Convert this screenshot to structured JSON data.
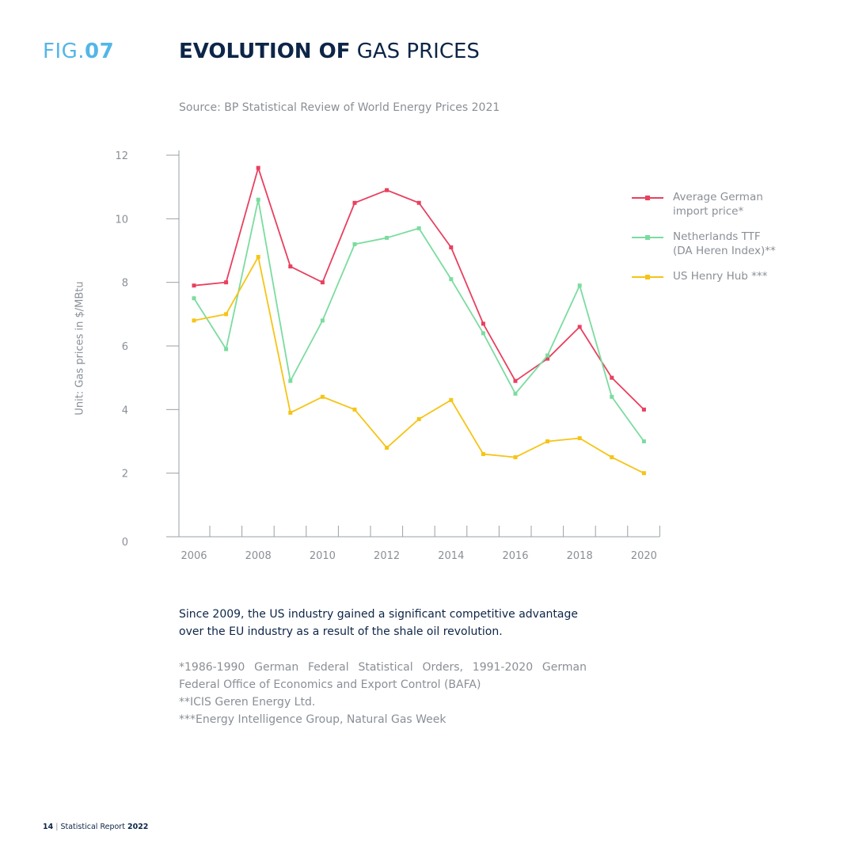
{
  "header": {
    "fig_prefix": "FIG.",
    "fig_number": "07",
    "title_bold": "EVOLUTION OF",
    "title_light": " GAS PRICES",
    "source": "Source: BP Statistical Review of World Energy Prices 2021"
  },
  "chart_data": {
    "type": "line",
    "ylabel": "Unit: Gas prices in $/MBtu",
    "xlabel": "",
    "ylim": [
      0,
      12
    ],
    "y_ticks": [
      "0",
      "2",
      "4",
      "6",
      "8",
      "10",
      "12"
    ],
    "x_tick_labels": [
      "2006",
      "2008",
      "2010",
      "2012",
      "2014",
      "2016",
      "2018",
      "2020"
    ],
    "x": [
      2006,
      2007,
      2008,
      2009,
      2010,
      2011,
      2012,
      2013,
      2014,
      2015,
      2016,
      2017,
      2018,
      2019,
      2020
    ],
    "grid": false,
    "legend_position": "right",
    "series": [
      {
        "name": "Average German\nimport price*",
        "color": "#e8405f",
        "values": [
          7.9,
          8.0,
          11.6,
          8.5,
          8.0,
          10.5,
          10.9,
          10.5,
          9.1,
          6.7,
          4.9,
          5.6,
          6.6,
          5.0,
          4.0
        ]
      },
      {
        "name": "Netherlands TTF\n(DA Heren Index)**",
        "color": "#7bdc9f",
        "values": [
          7.5,
          5.9,
          10.6,
          4.9,
          6.8,
          9.2,
          9.4,
          9.7,
          8.1,
          6.4,
          4.5,
          5.7,
          7.9,
          4.4,
          3.0
        ]
      },
      {
        "name": "US Henry Hub ***",
        "color": "#f6c415",
        "values": [
          6.8,
          7.0,
          8.8,
          3.9,
          4.4,
          4.0,
          2.8,
          3.7,
          4.3,
          2.6,
          2.5,
          3.0,
          3.1,
          2.5,
          2.0
        ]
      }
    ]
  },
  "conclusion": "Since 2009, the US industry gained a significant competitive advantage over the EU industry as a result of the shale oil revolution.",
  "footnotes": [
    "*1986-1990 German Federal Statistical Orders, 1991-2020 German Federal Office of Economics and Export Control (BAFA)",
    "**ICIS Geren Energy Ltd.",
    "***Energy Intelligence Group, Natural Gas Week"
  ],
  "footer": {
    "page_number": "14",
    "separator": " | ",
    "report_prefix": "Statistical Report ",
    "report_year": "2022"
  }
}
